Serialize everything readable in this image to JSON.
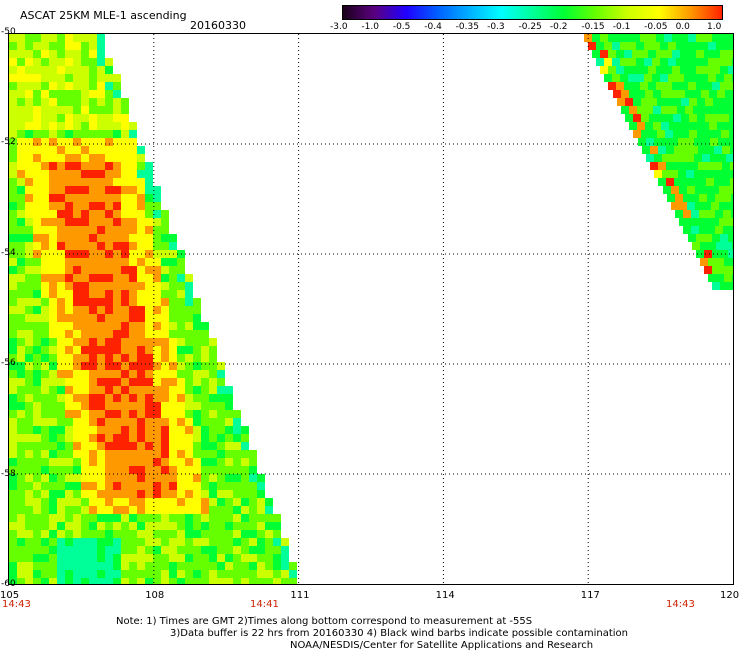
{
  "header": {
    "title": "ASCAT 25KM MLE-1 ascending",
    "date": "20160330"
  },
  "legend": {
    "labels": [
      "-3.0",
      "-1.0",
      "-0.5",
      "-0.4",
      "-0.35",
      "-0.3",
      "-0.25",
      "-0.2",
      "-0.15",
      "-0.1",
      "-0.05",
      "0.0",
      "1.0"
    ],
    "colors": [
      "#1a001a",
      "#5a0080",
      "#2000ff",
      "#0060ff",
      "#00b0ff",
      "#00ffff",
      "#00ff99",
      "#00ff33",
      "#66ff00",
      "#ccff00",
      "#ffff00",
      "#ff9900",
      "#ff2200"
    ]
  },
  "axes": {
    "lon_labels": [
      "105",
      "108",
      "111",
      "114",
      "117",
      "120"
    ],
    "lat_labels": [
      "-50",
      "-52",
      "-54",
      "-56",
      "-58",
      "-60"
    ],
    "lon_range": [
      105,
      120
    ],
    "lat_range": [
      -50,
      -60
    ],
    "grid": true
  },
  "times": {
    "left": "14:43",
    "middle": "14:41",
    "right": "14:43",
    "color": "#cc2200"
  },
  "notes": {
    "line1": "Note: 1) Times are GMT 2)Times along bottom correspond to measurement at -55S",
    "line2": "3)Data buffer is 22 hrs from 20160330 4) Black wind barbs indicate possible contamination",
    "line3": "NOAA/NESDIS/Center for Satellite Applications and Research"
  }
}
